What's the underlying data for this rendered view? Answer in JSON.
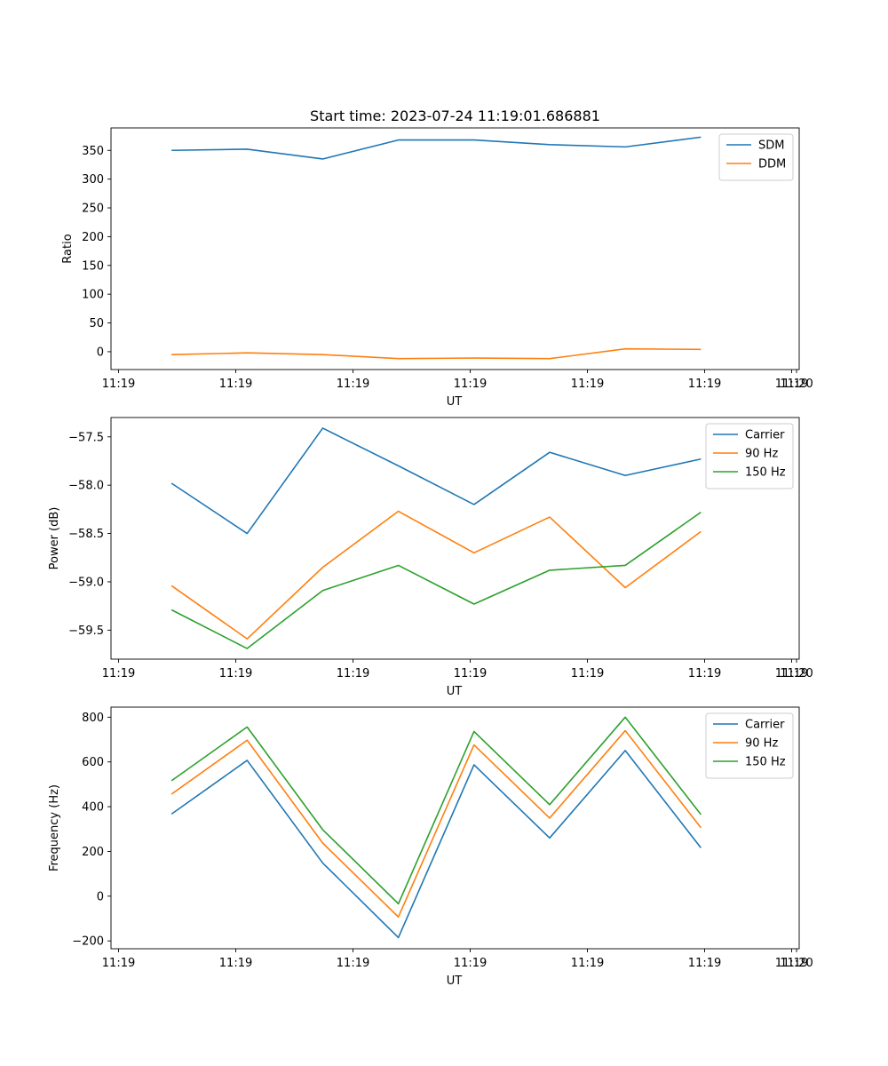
{
  "chart_data": [
    {
      "type": "line",
      "title": "Start time: 2023-07-24 11:19:01.686881",
      "xlabel": "UT",
      "ylabel": "Ratio",
      "x": [
        1,
        2,
        3,
        4,
        5,
        6,
        7,
        8
      ],
      "xlim": [
        0.2,
        9.3
      ],
      "xticks": [
        0.3,
        1.85,
        3.4,
        4.95,
        6.5,
        8.05,
        9.2
      ],
      "xtick_labels": [
        "11:19",
        "11:19",
        "11:19",
        "11:19",
        "11:19",
        "11:19",
        "11:19",
        "11:20"
      ],
      "ylim": [
        -31,
        389
      ],
      "yticks": [
        0,
        50,
        100,
        150,
        200,
        250,
        300,
        350
      ],
      "ytick_labels": [
        "0",
        "50",
        "100",
        "150",
        "200",
        "250",
        "300",
        "350"
      ],
      "legend": "top-right",
      "grid": false,
      "series": [
        {
          "name": "SDM",
          "color": "#1f77b4",
          "values": [
            350,
            352,
            335,
            368,
            368,
            360,
            356,
            373
          ]
        },
        {
          "name": "DDM",
          "color": "#ff7f0e",
          "values": [
            -5,
            -2,
            -5,
            -12,
            -11,
            -12,
            5,
            4
          ]
        }
      ]
    },
    {
      "type": "line",
      "title": "",
      "xlabel": "UT",
      "ylabel": "Power (dB)",
      "x": [
        1,
        2,
        3,
        4,
        5,
        6,
        7,
        8
      ],
      "xlim": [
        0.2,
        9.3
      ],
      "xticks": [
        0.3,
        1.85,
        3.4,
        4.95,
        6.5,
        8.05,
        9.2
      ],
      "xtick_labels": [
        "11:19",
        "11:19",
        "11:19",
        "11:19",
        "11:19",
        "11:19",
        "11:19",
        "11:20"
      ],
      "ylim": [
        -59.8,
        -57.3
      ],
      "yticks": [
        -59.5,
        -59.0,
        -58.5,
        -58.0,
        -57.5
      ],
      "ytick_labels": [
        "−59.5",
        "−59.0",
        "−58.5",
        "−58.0",
        "−57.5"
      ],
      "legend": "top-right",
      "grid": false,
      "series": [
        {
          "name": "Carrier",
          "color": "#1f77b4",
          "values": [
            -57.98,
            -58.5,
            -57.41,
            -57.8,
            -58.2,
            -57.66,
            -57.9,
            -57.73
          ]
        },
        {
          "name": "90 Hz",
          "color": "#ff7f0e",
          "values": [
            -59.04,
            -59.59,
            -58.85,
            -58.27,
            -58.7,
            -58.33,
            -59.06,
            -58.48
          ]
        },
        {
          "name": "150 Hz",
          "color": "#2ca02c",
          "values": [
            -59.29,
            -59.69,
            -59.09,
            -58.83,
            -59.23,
            -58.88,
            -58.83,
            -58.28
          ]
        }
      ]
    },
    {
      "type": "line",
      "title": "",
      "xlabel": "UT",
      "ylabel": "Frequency (Hz)",
      "x": [
        1,
        2,
        3,
        4,
        5,
        6,
        7,
        8
      ],
      "xlim": [
        0.2,
        9.3
      ],
      "xticks": [
        0.3,
        1.85,
        3.4,
        4.95,
        6.5,
        8.05,
        9.2
      ],
      "xtick_labels": [
        "11:19",
        "11:19",
        "11:19",
        "11:19",
        "11:19",
        "11:19",
        "11:19",
        "11:20"
      ],
      "ylim": [
        -235,
        845
      ],
      "yticks": [
        -200,
        0,
        200,
        400,
        600,
        800
      ],
      "ytick_labels": [
        "−200",
        "0",
        "200",
        "400",
        "600",
        "800"
      ],
      "legend": "top-right",
      "grid": false,
      "series": [
        {
          "name": "Carrier",
          "color": "#1f77b4",
          "values": [
            367,
            607,
            148,
            -185,
            587,
            260,
            651,
            216
          ]
        },
        {
          "name": "90 Hz",
          "color": "#ff7f0e",
          "values": [
            456,
            697,
            237,
            -93,
            676,
            349,
            740,
            306
          ]
        },
        {
          "name": "150 Hz",
          "color": "#2ca02c",
          "values": [
            516,
            756,
            297,
            -34,
            736,
            409,
            800,
            365
          ]
        }
      ]
    }
  ]
}
